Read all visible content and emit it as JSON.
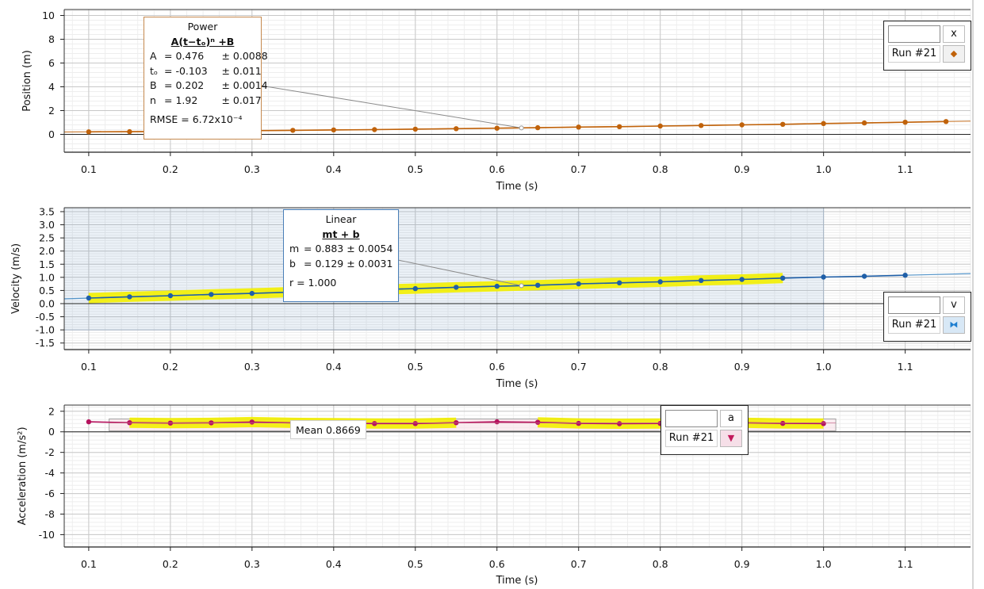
{
  "chart_data": [
    {
      "type": "line",
      "ylabel": "Position (m)",
      "xlabel": "Time (s)",
      "xlim": [
        0.07,
        1.18
      ],
      "ylim": [
        -1.5,
        10.5
      ],
      "x_ticks": [
        0.1,
        0.2,
        0.3,
        0.4,
        0.5,
        0.6,
        0.7,
        0.8,
        0.9,
        1.0,
        1.1
      ],
      "x_tick_labels": [
        "0.1",
        "0.2",
        "0.3",
        "0.4",
        "0.5",
        "0.6",
        "0.7",
        "0.8",
        "0.9",
        "1.0",
        "1.1"
      ],
      "y_ticks": [
        0,
        2,
        4,
        6,
        8,
        10
      ],
      "y_tick_labels": [
        "0",
        "2",
        "4",
        "6",
        "8",
        "10"
      ],
      "grid": true,
      "legend_placement": "top-right",
      "series": [
        {
          "name": "Run #21",
          "color": "#c0620a",
          "marker": "circle",
          "x": [
            0.1,
            0.15,
            0.2,
            0.25,
            0.3,
            0.35,
            0.4,
            0.45,
            0.5,
            0.55,
            0.6,
            0.65,
            0.7,
            0.75,
            0.8,
            0.85,
            0.9,
            0.95,
            1.0,
            1.05,
            1.1,
            1.15
          ],
          "y": [
            0.21,
            0.23,
            0.25,
            0.28,
            0.31,
            0.34,
            0.37,
            0.4,
            0.44,
            0.48,
            0.52,
            0.56,
            0.61,
            0.65,
            0.7,
            0.75,
            0.8,
            0.85,
            0.91,
            0.96,
            1.02,
            1.08
          ]
        }
      ],
      "fit": {
        "name": "Power",
        "equation": "A(t−tₒ)ⁿ +B",
        "color": "#c0620a",
        "line_extent": [
          0.07,
          1.18
        ],
        "params": [
          {
            "name": "A",
            "value": "0.476",
            "uncertainty": "0.0088"
          },
          {
            "name": "tₒ",
            "value": "-0.103",
            "uncertainty": "0.011"
          },
          {
            "name": "B",
            "value": "0.202",
            "uncertainty": "0.0014"
          },
          {
            "name": "n",
            "value": "1.92",
            "uncertainty": "0.017"
          }
        ],
        "stat": "RMSE = 6.72x10⁻⁴"
      },
      "legend": {
        "var": "x",
        "run": "Run #21",
        "marker_icon": "diamond-icon",
        "marker_color": "#c0620a"
      }
    },
    {
      "type": "line",
      "ylabel": "Velocity (m/s)",
      "xlabel": "Time (s)",
      "xlim": [
        0.07,
        1.18
      ],
      "ylim": [
        -1.75,
        3.65
      ],
      "x_ticks": [
        0.1,
        0.2,
        0.3,
        0.4,
        0.5,
        0.6,
        0.7,
        0.8,
        0.9,
        1.0,
        1.1
      ],
      "x_tick_labels": [
        "0.1",
        "0.2",
        "0.3",
        "0.4",
        "0.5",
        "0.6",
        "0.7",
        "0.8",
        "0.9",
        "1.0",
        "1.1"
      ],
      "y_ticks": [
        -1.5,
        -1.0,
        -0.5,
        0.0,
        0.5,
        1.0,
        1.5,
        2.0,
        2.5,
        3.0,
        3.5
      ],
      "y_tick_labels": [
        "-1.5",
        "-1.0",
        "-0.5",
        "0.0",
        "0.5",
        "1.0",
        "1.5",
        "2.0",
        "2.5",
        "3.0",
        "3.5"
      ],
      "grid": true,
      "legend_placement": "bottom-right",
      "selection_range": {
        "x": [
          0.07,
          1.0
        ],
        "y": [
          -1.0,
          3.65
        ]
      },
      "series": [
        {
          "name": "Run #21",
          "color": "#1f5fa8",
          "marker": "circle",
          "x": [
            0.1,
            0.15,
            0.2,
            0.25,
            0.3,
            0.35,
            0.4,
            0.45,
            0.5,
            0.55,
            0.6,
            0.65,
            0.7,
            0.75,
            0.8,
            0.85,
            0.9,
            0.95,
            1.0,
            1.05,
            1.1
          ],
          "y": [
            0.21,
            0.26,
            0.3,
            0.35,
            0.39,
            0.44,
            0.48,
            0.53,
            0.57,
            0.62,
            0.66,
            0.7,
            0.75,
            0.79,
            0.83,
            0.88,
            0.92,
            0.97,
            1.01,
            1.04,
            1.08
          ]
        }
      ],
      "fit": {
        "name": "Linear",
        "equation": "mt + b",
        "color": "#2f7fc0",
        "line_extent": [
          0.07,
          1.18
        ],
        "highlight_range": [
          0.1,
          0.95
        ],
        "params": [
          {
            "name": "m",
            "value": "0.883",
            "uncertainty": "0.0054"
          },
          {
            "name": "b",
            "value": "0.129",
            "uncertainty": "0.0031"
          }
        ],
        "stat": "r = 1.000"
      },
      "legend": {
        "var": "v",
        "run": "Run #21",
        "marker_icon": "bowtie-icon",
        "marker_color": "#1f7fd0"
      }
    },
    {
      "type": "line",
      "ylabel": "Acceleration (m/s²)",
      "xlabel": "Time (s)",
      "xlim": [
        0.07,
        1.18
      ],
      "ylim": [
        -11.2,
        2.6
      ],
      "x_ticks": [
        0.1,
        0.2,
        0.3,
        0.4,
        0.5,
        0.6,
        0.7,
        0.8,
        0.9,
        1.0,
        1.1
      ],
      "x_tick_labels": [
        "0.1",
        "0.2",
        "0.3",
        "0.4",
        "0.5",
        "0.6",
        "0.7",
        "0.8",
        "0.9",
        "1.0",
        "1.1"
      ],
      "y_ticks": [
        -10,
        -8,
        -6,
        -4,
        -2,
        0,
        2
      ],
      "y_tick_labels": [
        "-10",
        "-8",
        "-6",
        "-4",
        "-2",
        "0",
        "2"
      ],
      "grid": true,
      "legend_placement": "top-right",
      "series": [
        {
          "name": "Run #21",
          "color": "#b5135e",
          "marker": "circle",
          "x": [
            0.1,
            0.15,
            0.2,
            0.25,
            0.3,
            0.35,
            0.4,
            0.45,
            0.5,
            0.55,
            0.6,
            0.65,
            0.7,
            0.75,
            0.8,
            0.85,
            0.9,
            0.95,
            1.0
          ],
          "y": [
            0.97,
            0.89,
            0.85,
            0.87,
            0.95,
            0.87,
            0.85,
            0.8,
            0.8,
            0.89,
            0.97,
            0.93,
            0.82,
            0.79,
            0.81,
            0.85,
            0.88,
            0.82,
            0.8
          ]
        }
      ],
      "mean": {
        "label": "Mean 0.8669",
        "value": 0.8669,
        "range": [
          0.125,
          1.015
        ]
      },
      "highlight_ranges": [
        [
          0.15,
          0.55
        ],
        [
          0.65,
          1.0
        ]
      ],
      "legend": {
        "var": "a",
        "run": "Run #21",
        "marker_icon": "triangle-down-icon",
        "marker_color": "#c2185b"
      }
    }
  ]
}
